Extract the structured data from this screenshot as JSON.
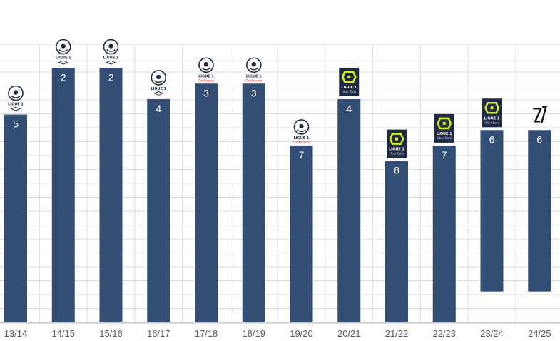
{
  "chart_data": {
    "type": "bar",
    "ylim": [
      0,
      18
    ],
    "ylim_note": "",
    "bar_base_default": 18,
    "colors": {
      "bar": "#334e74",
      "grid": "#d9dde2",
      "tick_text": "#555a60",
      "bar_label": "#ffffff",
      "logo_navy": "#1f2a44",
      "logo_red": "#e0262b",
      "logo_lime": "#d4f21a"
    },
    "categories": [
      "13/14",
      "14/15",
      "15/16",
      "16/17",
      "17/18",
      "18/19",
      "19/20",
      "20/21",
      "21/22",
      "22/23",
      "23/24",
      "24/25"
    ],
    "values": [
      5,
      2,
      2,
      4,
      3,
      3,
      7,
      4,
      8,
      7,
      6,
      6
    ],
    "bar_bottoms": [
      18,
      18,
      18,
      18,
      18,
      18,
      18,
      18,
      18,
      18,
      16,
      16
    ],
    "labels": [
      "5",
      "2",
      "2",
      "4",
      "3",
      "3",
      "7",
      "4",
      "8",
      "7",
      "6",
      "6"
    ],
    "logos": [
      {
        "icon": "ligue1-classic-logo",
        "text": "LIGUE 1",
        "sub": ""
      },
      {
        "icon": "ligue1-classic-logo",
        "text": "LIGUE 1",
        "sub": ""
      },
      {
        "icon": "ligue1-classic-logo",
        "text": "LIGUE 1",
        "sub": ""
      },
      {
        "icon": "ligue1-classic-logo",
        "text": "LIGUE 1",
        "sub": ""
      },
      {
        "icon": "ligue1-conforama-logo",
        "text": "LIGUE 1",
        "sub": "Conforama"
      },
      {
        "icon": "ligue1-conforama-logo",
        "text": "LIGUE 1",
        "sub": "Conforama"
      },
      {
        "icon": "ligue1-conforama-logo",
        "text": "LIGUE 1",
        "sub": "Conforama"
      },
      {
        "icon": "ligue1-ubereats-logo",
        "text": "LIGUE 1",
        "sub": "Uber Eats"
      },
      {
        "icon": "ligue1-ubereats-logo",
        "text": "LIGUE 1",
        "sub": "Uber Eats"
      },
      {
        "icon": "ligue1-ubereats-logo",
        "text": "LIGUE 1",
        "sub": "Uber Eats"
      },
      {
        "icon": "ligue1-ubereats-logo",
        "text": "LIGUE 1",
        "sub": "Uber Eats"
      },
      {
        "icon": "ligue1-mcdonalds-logo",
        "text": "",
        "sub": ""
      }
    ],
    "grid": true,
    "title": "",
    "xlabel": "",
    "ylabel": ""
  }
}
